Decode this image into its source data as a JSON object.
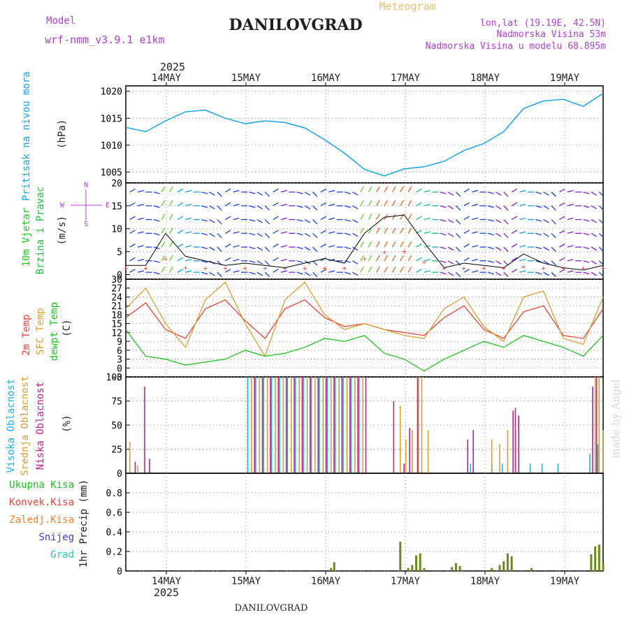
{
  "header": {
    "model_label": "Model",
    "model_name": "wrf-nmm_v3.9.1 e1km",
    "title": "DANILOVGRAD",
    "subtitle": "Meteogram",
    "lonlat": "lon,lat (19.19E, 42.5N)",
    "elevation": "Nadmorska Visina 53m",
    "model_elevation": "Nadmorska Visina u modelu 68.895m",
    "year": "2025",
    "footer_title": "DANILOVGRAD",
    "watermark": "made by Angel"
  },
  "colors": {
    "pressure": "#1aa3e8",
    "wind_label": "#22c41e",
    "wind_label2": "#1fbf3a",
    "temp2m": "#e8433a",
    "sfc": "#d8a030",
    "dew": "#20c020",
    "high_cloud": "#1ab0e8",
    "mid_cloud": "#d8a030",
    "low_cloud": "#c0208c",
    "precip_total": "#20c020",
    "precip_conv": "#e8433a",
    "precip_frozen": "#f08030",
    "precip_snow": "#4040d8",
    "precip_grad": "#20c8c0",
    "purple": "#b040d0"
  },
  "chart_data": [
    {
      "type": "line",
      "panel": "pressure",
      "ylabel_rotated": "Pritisak na nivou mora",
      "units": "(hPa)",
      "x_ticks": [
        "14MAY",
        "15MAY",
        "16MAY",
        "17MAY",
        "18MAY",
        "19MAY"
      ],
      "ylim": [
        1003,
        1021
      ],
      "yticks": [
        1005,
        1010,
        1015,
        1020
      ],
      "grid": true,
      "x": [
        0,
        0.25,
        0.5,
        0.75,
        1.0,
        1.25,
        1.5,
        1.75,
        2.0,
        2.25,
        2.5,
        2.75,
        3.0,
        3.25,
        3.5,
        3.75,
        4.0,
        4.25,
        4.5,
        4.75,
        5.0,
        5.25,
        5.5,
        5.75,
        6.0
      ],
      "series": [
        {
          "values": [
            1013.3,
            1012.5,
            1014.5,
            1016.2,
            1016.5,
            1015.0,
            1014.0,
            1014.5,
            1014.2,
            1013.2,
            1011.0,
            1008.5,
            1005.5,
            1004.3,
            1005.6,
            1006.0,
            1007.0,
            1009.0,
            1010.3,
            1012.5,
            1016.8,
            1018.2,
            1018.5,
            1017.2,
            1019.6
          ]
        }
      ]
    },
    {
      "type": "line",
      "panel": "wind",
      "ylabel_rotated_1": "10m Vjetar",
      "ylabel_rotated_2": "Brzina i Pravac",
      "units": "(m/s)",
      "compass_n": "N",
      "compass_w": "W",
      "compass_e": "E",
      "compass_s": "S",
      "ylim": [
        -1,
        20
      ],
      "yticks": [
        0,
        5,
        10,
        15,
        20
      ],
      "grid": true,
      "x": [
        0,
        0.25,
        0.5,
        0.75,
        1.0,
        1.25,
        1.5,
        1.75,
        2.0,
        2.25,
        2.5,
        2.75,
        3.0,
        3.25,
        3.5,
        3.75,
        4.0,
        4.25,
        4.5,
        4.75,
        5.0,
        5.25,
        5.5,
        5.75,
        6.0
      ],
      "series": [
        {
          "name": "speed",
          "values": [
            2.0,
            2.0,
            9.0,
            4.0,
            3.0,
            2.0,
            2.5,
            2.0,
            1.5,
            2.5,
            3.5,
            2.5,
            9.0,
            12.5,
            13.0,
            7.0,
            1.5,
            2.5,
            2.0,
            1.5,
            4.5,
            2.5,
            1.5,
            1.0,
            2.0
          ]
        }
      ]
    },
    {
      "type": "line",
      "panel": "temperature",
      "label_2m": "2m Temp",
      "label_sfc": "SFC Temp",
      "label_dew": "dewpt Temp",
      "units": "(C)",
      "ylim": [
        -3,
        30
      ],
      "yticks": [
        -3,
        0,
        3,
        6,
        9,
        12,
        15,
        18,
        21,
        24,
        27,
        30
      ],
      "grid": true,
      "x": [
        0,
        0.25,
        0.5,
        0.75,
        1.0,
        1.25,
        1.5,
        1.75,
        2.0,
        2.25,
        2.5,
        2.75,
        3.0,
        3.25,
        3.5,
        3.75,
        4.0,
        4.25,
        4.5,
        4.75,
        5.0,
        5.25,
        5.5,
        5.75,
        6.0
      ],
      "series": [
        {
          "name": "2m Temp",
          "values": [
            17,
            22,
            13,
            10,
            20,
            23,
            16,
            10,
            20,
            23,
            17,
            14,
            15,
            13,
            12,
            11,
            17,
            21,
            13,
            10,
            19,
            21,
            11,
            10,
            20
          ]
        },
        {
          "name": "SFC Temp",
          "values": [
            20,
            27,
            15,
            7,
            23,
            29,
            15,
            4,
            23,
            29,
            18,
            13,
            15,
            13,
            11,
            10,
            20,
            24,
            14,
            9,
            24,
            26,
            10,
            8,
            24
          ]
        },
        {
          "name": "dewpt Temp",
          "values": [
            13,
            4,
            3,
            1,
            2,
            3,
            6,
            4,
            5,
            7,
            10,
            9,
            11,
            5,
            3,
            -1,
            3,
            6,
            9,
            7,
            11,
            9,
            7,
            4,
            11
          ]
        }
      ]
    },
    {
      "type": "bar",
      "panel": "clouds",
      "label_high": "Visoka Oblacnost",
      "label_mid": "Srednja Oblacnost",
      "label_low": "Niska Oblacnost",
      "units": "(%)",
      "ylim": [
        0,
        100
      ],
      "yticks": [
        0,
        25,
        50,
        75,
        100
      ],
      "grid": true,
      "series": [
        {
          "name": "Visoka Oblacnost",
          "x": [
            1.55,
            1.65,
            1.75,
            1.85,
            1.95,
            2.05,
            2.15,
            2.25,
            2.35,
            2.45,
            2.55,
            2.65,
            2.75,
            2.85,
            2.95,
            4.35,
            4.62,
            4.75,
            5.1,
            5.25,
            5.45,
            5.85,
            5.95
          ],
          "values": [
            100,
            100,
            100,
            100,
            100,
            100,
            100,
            100,
            100,
            100,
            100,
            100,
            100,
            100,
            100,
            10,
            10,
            10,
            10,
            10,
            10,
            20,
            30
          ]
        },
        {
          "name": "Srednja Oblacnost",
          "x": [
            0.05,
            0.15,
            1.58,
            1.68,
            1.78,
            1.88,
            1.98,
            2.08,
            2.18,
            2.28,
            2.38,
            2.48,
            2.58,
            2.68,
            2.78,
            2.88,
            2.98,
            3.45,
            3.52,
            3.6,
            3.68,
            3.72,
            3.8,
            4.6,
            4.7,
            4.8,
            4.9,
            5.9,
            5.95,
            6.0
          ],
          "values": [
            33,
            8,
            100,
            100,
            100,
            100,
            100,
            100,
            100,
            100,
            100,
            100,
            100,
            100,
            100,
            100,
            100,
            70,
            35,
            45,
            100,
            100,
            45,
            35,
            30,
            45,
            45,
            100,
            100,
            45
          ]
        },
        {
          "name": "Niska Oblacnost",
          "x": [
            0.1,
            0.22,
            0.28,
            1.6,
            1.7,
            1.8,
            1.9,
            2.0,
            2.1,
            2.2,
            2.3,
            2.4,
            2.5,
            2.6,
            2.7,
            2.8,
            2.9,
            3.0,
            3.35,
            3.48,
            3.55,
            3.65,
            4.28,
            4.35,
            4.85,
            4.88,
            4.92,
            5.85,
            5.9
          ],
          "values": [
            12,
            90,
            15,
            100,
            100,
            100,
            100,
            100,
            100,
            100,
            100,
            100,
            100,
            100,
            100,
            100,
            100,
            100,
            75,
            10,
            47,
            100,
            35,
            45,
            65,
            68,
            60,
            90,
            100
          ]
        }
      ]
    },
    {
      "type": "bar",
      "panel": "precip",
      "legend": [
        "Ukupna Kisa",
        "Konvek.Kisa",
        "Zaledj.Kisa",
        "Snijeg",
        "Grad"
      ],
      "ylabel": "1hr Precip (mm)",
      "ylim": [
        0,
        1.0
      ],
      "yticks": [
        0,
        0.2,
        0.4,
        0.6,
        0.8
      ],
      "grid": true,
      "series": [
        {
          "name": "Ukupna Kisa",
          "x": [
            2.58,
            2.62,
            3.45,
            3.55,
            3.6,
            3.65,
            3.7,
            3.75,
            4.1,
            4.15,
            4.2,
            4.6,
            4.7,
            4.75,
            4.8,
            4.85,
            5.1,
            5.85,
            5.9,
            5.95,
            6.0
          ],
          "values": [
            0.03,
            0.09,
            0.3,
            0.03,
            0.06,
            0.16,
            0.18,
            0.03,
            0.04,
            0.08,
            0.05,
            0.03,
            0.06,
            0.1,
            0.18,
            0.15,
            0.03,
            0.17,
            0.25,
            0.27,
            0.08
          ]
        }
      ]
    }
  ]
}
